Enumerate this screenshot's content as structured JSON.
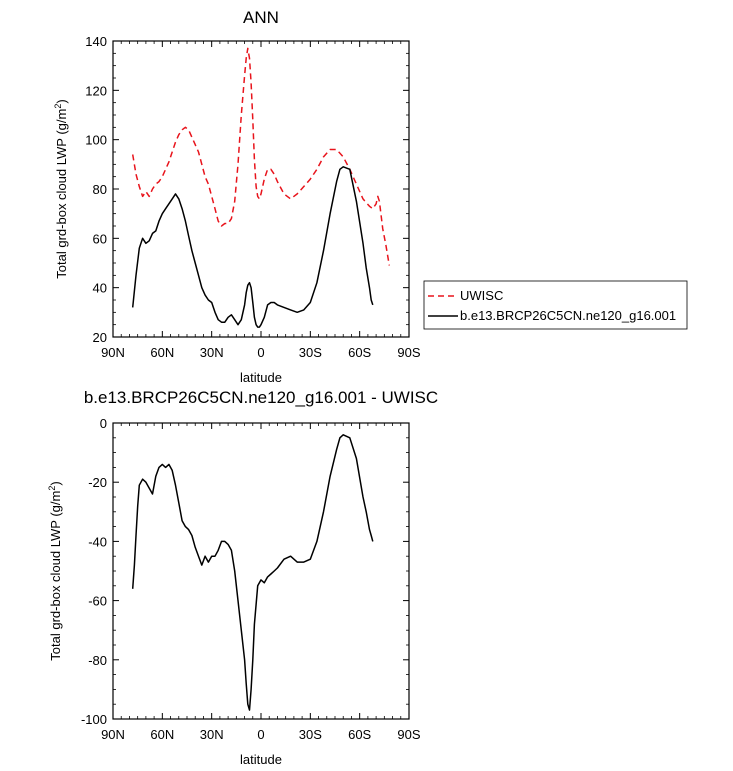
{
  "chart_data": [
    {
      "type": "line",
      "title": "ANN",
      "xlabel": "latitude",
      "ylabel": "Total grd-box cloud LWP (g/m",
      "ylabel_sup": "2",
      "ylabel_close": ")",
      "xlim": [
        -90,
        90
      ],
      "ylim": [
        20,
        140
      ],
      "x_reversed": true,
      "xticks": [
        -90,
        -60,
        -30,
        0,
        30,
        60,
        90
      ],
      "xtick_labels": [
        "90N",
        "60N",
        "30N",
        "0",
        "30S",
        "60S",
        "90S"
      ],
      "yticks": [
        20,
        40,
        60,
        80,
        100,
        120,
        140
      ],
      "ytick_labels": [
        "20",
        "40",
        "60",
        "80",
        "100",
        "120",
        "140"
      ],
      "legend": "right",
      "series": [
        {
          "name": "UWISC",
          "color": "#e8141c",
          "dash": true,
          "x": [
            -78,
            -76,
            -74,
            -72,
            -70,
            -68,
            -66,
            -64,
            -62,
            -60,
            -58,
            -56,
            -54,
            -52,
            -50,
            -48,
            -46,
            -44,
            -42,
            -40,
            -38,
            -36,
            -34,
            -32,
            -30,
            -28,
            -26,
            -24,
            -22,
            -20,
            -18,
            -16,
            -14,
            -12,
            -10,
            -9,
            -8,
            -7,
            -6,
            -5,
            -4,
            -3,
            -2,
            -1,
            0,
            2,
            4,
            6,
            8,
            10,
            14,
            18,
            22,
            26,
            30,
            34,
            38,
            42,
            46,
            50,
            54,
            58,
            62,
            66,
            68,
            70,
            71,
            72,
            74,
            76,
            78
          ],
          "values": [
            94,
            86,
            81,
            77,
            79,
            77,
            80,
            82,
            83,
            85,
            88,
            91,
            95,
            99,
            102,
            104,
            105,
            104,
            101,
            98,
            95,
            90,
            85,
            82,
            77,
            72,
            67,
            65,
            66,
            66,
            68,
            75,
            90,
            110,
            126,
            133,
            137,
            133,
            123,
            108,
            92,
            81,
            77,
            76,
            78,
            84,
            88,
            88,
            86,
            83,
            78,
            76,
            78,
            81,
            84,
            88,
            93,
            96,
            96,
            93,
            88,
            82,
            76,
            73,
            72,
            74,
            77,
            75,
            64,
            57,
            49
          ]
        },
        {
          "name": "b.e13.BRCP26C5CN.ne120_g16.001",
          "color": "#000000",
          "dash": false,
          "x": [
            -78,
            -76,
            -74,
            -72,
            -70,
            -68,
            -66,
            -64,
            -62,
            -60,
            -58,
            -56,
            -54,
            -52,
            -50,
            -48,
            -46,
            -44,
            -42,
            -40,
            -38,
            -36,
            -34,
            -32,
            -30,
            -28,
            -26,
            -24,
            -22,
            -20,
            -18,
            -16,
            -14,
            -12,
            -10,
            -9,
            -8,
            -7,
            -6,
            -5,
            -4,
            -3,
            -2,
            -1,
            0,
            2,
            4,
            6,
            8,
            10,
            14,
            18,
            22,
            26,
            30,
            34,
            38,
            42,
            46,
            48,
            50,
            54,
            58,
            62,
            64,
            66,
            67,
            68
          ],
          "values": [
            32,
            45,
            56,
            60,
            58,
            59,
            62,
            63,
            67,
            70,
            72,
            74,
            76,
            78,
            76,
            72,
            67,
            61,
            55,
            50,
            45,
            40,
            37,
            35,
            34,
            30,
            27,
            26,
            26,
            28,
            29,
            27,
            25,
            27,
            33,
            38,
            41,
            42,
            40,
            34,
            28,
            25,
            24,
            24,
            25,
            28,
            33,
            34,
            34,
            33,
            32,
            31,
            30,
            31,
            34,
            42,
            55,
            70,
            83,
            88,
            89,
            88,
            75,
            58,
            48,
            40,
            35,
            33
          ]
        }
      ]
    },
    {
      "type": "line",
      "title": "b.e13.BRCP26C5CN.ne120_g16.001 - UWISC",
      "xlabel": "latitude",
      "ylabel": "Total grd-box cloud LWP (g/m",
      "ylabel_sup": "2",
      "ylabel_close": ")",
      "xlim": [
        -90,
        90
      ],
      "ylim": [
        -100,
        0
      ],
      "x_reversed": true,
      "xticks": [
        -90,
        -60,
        -30,
        0,
        30,
        60,
        90
      ],
      "xtick_labels": [
        "90N",
        "60N",
        "30N",
        "0",
        "30S",
        "60S",
        "90S"
      ],
      "yticks": [
        -100,
        -80,
        -60,
        -40,
        -20,
        0
      ],
      "ytick_labels": [
        "-100",
        "-80",
        "-60",
        "-40",
        "-20",
        "0"
      ],
      "series": [
        {
          "color": "#000000",
          "dash": false,
          "x": [
            -78,
            -77,
            -76,
            -75,
            -74,
            -72,
            -70,
            -68,
            -66,
            -64,
            -62,
            -60,
            -58,
            -56,
            -54,
            -52,
            -50,
            -48,
            -46,
            -44,
            -42,
            -40,
            -38,
            -36,
            -34,
            -32,
            -30,
            -28,
            -26,
            -24,
            -22,
            -20,
            -18,
            -16,
            -14,
            -12,
            -10,
            -9,
            -8,
            -7,
            -6,
            -5,
            -4,
            -2,
            0,
            2,
            4,
            6,
            8,
            10,
            14,
            18,
            22,
            26,
            30,
            34,
            38,
            42,
            46,
            48,
            50,
            54,
            58,
            62,
            64,
            66,
            67,
            68
          ],
          "values": [
            -56,
            -48,
            -38,
            -28,
            -21,
            -19,
            -20,
            -22,
            -24,
            -18,
            -15,
            -14,
            -15,
            -14,
            -16,
            -21,
            -27,
            -33,
            -35,
            -36,
            -38,
            -42,
            -45,
            -48,
            -45,
            -47,
            -45,
            -45,
            -43,
            -40,
            -40,
            -41,
            -43,
            -50,
            -60,
            -70,
            -80,
            -88,
            -95,
            -97,
            -90,
            -80,
            -68,
            -55,
            -53,
            -54,
            -52,
            -51,
            -50,
            -49,
            -46,
            -45,
            -47,
            -47,
            -46,
            -40,
            -30,
            -18,
            -9,
            -5,
            -4,
            -5,
            -12,
            -25,
            -30,
            -36,
            -38,
            -40
          ]
        }
      ]
    }
  ]
}
